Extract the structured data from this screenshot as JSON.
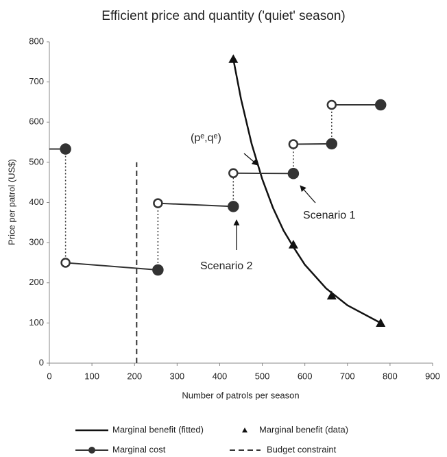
{
  "chart_data": {
    "type": "line",
    "title": "Efficient price and quantity ('quiet' season)",
    "x_label": "Number of patrols per season",
    "y_label": "Price per patrol (US$)",
    "xlim": [
      0,
      900
    ],
    "xticks": [
      0,
      100,
      200,
      300,
      400,
      500,
      600,
      700,
      800,
      900
    ],
    "ylim": [
      0,
      800
    ],
    "yticks": [
      0,
      100,
      200,
      300,
      400,
      500,
      600,
      700,
      800
    ],
    "grid": false,
    "series": [
      {
        "name": "Marginal benefit (fitted)",
        "style": "line",
        "color": "#111",
        "x": [
          432,
          450,
          475,
          500,
          525,
          550,
          575,
          600,
          650,
          700,
          778
        ],
        "values": [
          757,
          658,
          546,
          458,
          387,
          330,
          286,
          245,
          186,
          144,
          100
        ]
      },
      {
        "name": "Marginal benefit (data)",
        "style": "triangles",
        "color": "#111",
        "x": [
          432,
          573,
          663,
          778
        ],
        "values": [
          757,
          295,
          168,
          100
        ]
      },
      {
        "name": "Marginal cost",
        "style": "steps",
        "color": "#333",
        "x": [
          0,
          38,
          38,
          255,
          255,
          432,
          432,
          573,
          573,
          663,
          663,
          778
        ],
        "values": [
          533,
          533,
          250,
          232,
          398,
          390,
          473,
          472,
          545,
          546,
          643,
          643
        ]
      },
      {
        "name": "Budget constraint",
        "style": "dashed",
        "color": "#333",
        "x": [
          205,
          205
        ],
        "values": [
          0,
          500
        ]
      }
    ],
    "annotations": [
      "(pᵉ,qᵉ)",
      "Scenario 1",
      "Scenario 2"
    ]
  }
}
